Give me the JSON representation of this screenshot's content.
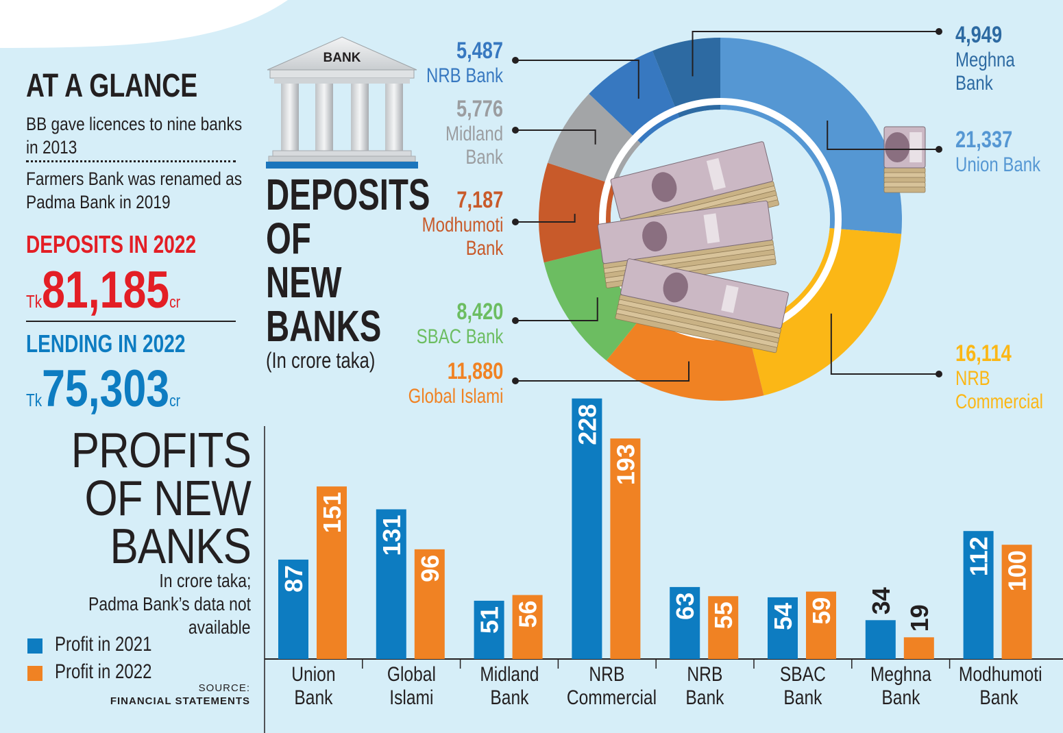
{
  "glance": {
    "title": "AT A GLANCE",
    "fact1_line1": "BB gave licences to nine banks",
    "fact1_line2": "in 2013",
    "fact2_line1": "Farmers Bank was renamed as",
    "fact2_line2": "Padma Bank in 2019",
    "deposits_label": "DEPOSITS IN 2022",
    "deposits_prefix": "Tk",
    "deposits_value": "81,185",
    "deposits_suffix": "cr",
    "lending_label": "LENDING IN 2022",
    "lending_prefix": "Tk",
    "lending_value": "75,303",
    "lending_suffix": "cr"
  },
  "bank_sign": "BANK",
  "colors": {
    "blue2021": "#0d7cc1",
    "orange2022": "#f08223",
    "background": "#d6eef8",
    "red": "#e31e25"
  },
  "chart_data": [
    {
      "type": "pie",
      "title_lines": [
        "DEPOSITS",
        "OF",
        "NEW",
        "BANKS"
      ],
      "subtitle": "(In crore taka)",
      "slices": [
        {
          "label": "Union Bank",
          "label_lines": [
            "Union Bank"
          ],
          "value": 21337,
          "value_text": "21,337",
          "color": "#5597d3"
        },
        {
          "label": "NRB Commercial",
          "label_lines": [
            "NRB",
            "Commercial"
          ],
          "value": 16114,
          "value_text": "16,114",
          "color": "#fbb716"
        },
        {
          "label": "Global Islami",
          "label_lines": [
            "Global Islami"
          ],
          "value": 11880,
          "value_text": "11,880",
          "color": "#f08223"
        },
        {
          "label": "SBAC Bank",
          "label_lines": [
            "SBAC Bank"
          ],
          "value": 8420,
          "value_text": "8,420",
          "color": "#6cbd61"
        },
        {
          "label": "Modhumoti Bank",
          "label_lines": [
            "Modhumoti",
            "Bank"
          ],
          "value": 7187,
          "value_text": "7,187",
          "color": "#c85a2a"
        },
        {
          "label": "Midland Bank",
          "label_lines": [
            "Midland",
            "Bank"
          ],
          "value": 5776,
          "value_text": "5,776",
          "color": "#a3a5a7"
        },
        {
          "label": "NRB Bank",
          "label_lines": [
            "NRB Bank"
          ],
          "value": 5487,
          "value_text": "5,487",
          "color": "#3778c0"
        },
        {
          "label": "Meghna Bank",
          "label_lines": [
            "Meghna",
            "Bank"
          ],
          "value": 4949,
          "value_text": "4,949",
          "color": "#2d6aa2"
        }
      ]
    },
    {
      "type": "bar",
      "title_lines": [
        "PROFITS",
        "OF NEW",
        "BANKS"
      ],
      "note_lines": [
        "In crore taka;",
        "Padma Bank’s data not",
        "available"
      ],
      "categories": [
        [
          "Union",
          "Bank"
        ],
        [
          "Global",
          "Islami"
        ],
        [
          "Midland",
          "Bank"
        ],
        [
          "NRB",
          "Commercial"
        ],
        [
          "NRB",
          "Bank"
        ],
        [
          "SBAC",
          "Bank"
        ],
        [
          "Meghna",
          "Bank"
        ],
        [
          "Modhumoti",
          "Bank"
        ]
      ],
      "series": [
        {
          "name": "Profit in 2021",
          "color": "#0d7cc1",
          "values": [
            87,
            131,
            51,
            228,
            63,
            54,
            34,
            112
          ]
        },
        {
          "name": "Profit in 2022",
          "color": "#f08223",
          "values": [
            151,
            96,
            56,
            193,
            55,
            59,
            19,
            100
          ]
        }
      ],
      "ylim": [
        0,
        235
      ],
      "legend_position": "bottom-left",
      "source_label": "SOURCE:",
      "source_name": "FINANCIAL STATEMENTS"
    }
  ]
}
